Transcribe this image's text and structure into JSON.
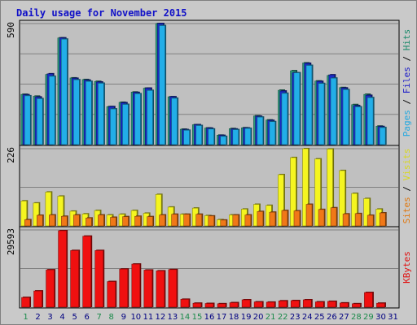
{
  "chart_data": {
    "type": "bar",
    "title": "Daily usage for November 2015",
    "categories": [
      "1",
      "2",
      "3",
      "4",
      "5",
      "6",
      "7",
      "8",
      "9",
      "10",
      "11",
      "12",
      "13",
      "14",
      "15",
      "16",
      "17",
      "18",
      "19",
      "20",
      "21",
      "22",
      "23",
      "24",
      "25",
      "26",
      "27",
      "28",
      "29",
      "30",
      "31"
    ],
    "weekend_days": [
      "1",
      "7",
      "8",
      "14",
      "15",
      "21",
      "22",
      "28",
      "29"
    ],
    "panels": [
      {
        "id": "pages",
        "max_label": "590",
        "ymax": 590,
        "side_labels": [
          {
            "text": "Pages",
            "color": "#22a8e0"
          },
          {
            "text": " / ",
            "color": "#000000"
          },
          {
            "text": "Files",
            "color": "#1a1ac8"
          },
          {
            "text": " / ",
            "color": "#000000"
          },
          {
            "text": "Hits",
            "color": "#1a8a6a"
          }
        ],
        "series": [
          {
            "name": "Hits",
            "color": "#2a9a7a",
            "values": [
              245,
              236,
              342,
              520,
              325,
              317,
              308,
              185,
              206,
              256,
              275,
              590,
              233,
              75,
              97,
              81,
              46,
              78,
              82,
              140,
              120,
              265,
              360,
              398,
              310,
              337,
              278,
              195,
              245,
              90,
              0
            ]
          },
          {
            "name": "Files",
            "color": "#1a2ac8",
            "values": [
              243,
              232,
              345,
              520,
              323,
              314,
              305,
              185,
              204,
              254,
              275,
              590,
              233,
              73,
              97,
              80,
              45,
              76,
              81,
              138,
              118,
              261,
              350,
              396,
              308,
              340,
              276,
              190,
              240,
              88,
              0
            ]
          },
          {
            "name": "Pages",
            "color": "#22aee8",
            "values": [
              238,
              224,
              333,
              514,
              316,
              308,
              299,
              174,
              196,
              248,
              264,
              580,
              226,
              70,
              93,
              76,
              40,
              73,
              79,
              134,
              112,
              250,
              350,
              386,
              298,
              324,
              268,
              184,
              229,
              83,
              0
            ]
          }
        ]
      },
      {
        "id": "visits",
        "max_label": "226",
        "ymax": 226,
        "side_labels": [
          {
            "text": "Sites",
            "color": "#e07810"
          },
          {
            "text": " / ",
            "color": "#000000"
          },
          {
            "text": "Visits",
            "color": "#d8d820"
          }
        ],
        "series": [
          {
            "name": "Visits",
            "color": "#f5f520",
            "values": [
              73,
              67,
              99,
              87,
              43,
              35,
              45,
              32,
              34,
              45,
              37,
              92,
              55,
              34,
              52,
              30,
              18,
              32,
              49,
              63,
              60,
              150,
              200,
              226,
              196,
              225,
              162,
              95,
              80,
              49,
              0
            ]
          },
          {
            "name": "Sites",
            "color": "#f07818",
            "values": [
              18,
              31,
              32,
              28,
              32,
              23,
              32,
              25,
              27,
              28,
              27,
              32,
              34,
              34,
              34,
              29,
              17,
              32,
              32,
              42,
              40,
              45,
              44,
              63,
              48,
              53,
              35,
              36,
              31,
              38,
              0
            ]
          }
        ]
      },
      {
        "id": "kbytes",
        "max_label": "29593",
        "ymax": 29593,
        "side_labels": [
          {
            "text": "KBytes",
            "color": "#e01010"
          }
        ],
        "series": [
          {
            "name": "KBytes",
            "color": "#f01010",
            "values": [
              3700,
              6200,
              14300,
              29300,
              21700,
              27200,
              21700,
              9800,
              14600,
              16500,
              14200,
              13900,
              14400,
              3000,
              1500,
              1400,
              1300,
              1700,
              2800,
              2000,
              1900,
              2400,
              2500,
              2800,
              2000,
              2200,
              1600,
              1300,
              5600,
              1500,
              0
            ]
          }
        ]
      }
    ]
  }
}
